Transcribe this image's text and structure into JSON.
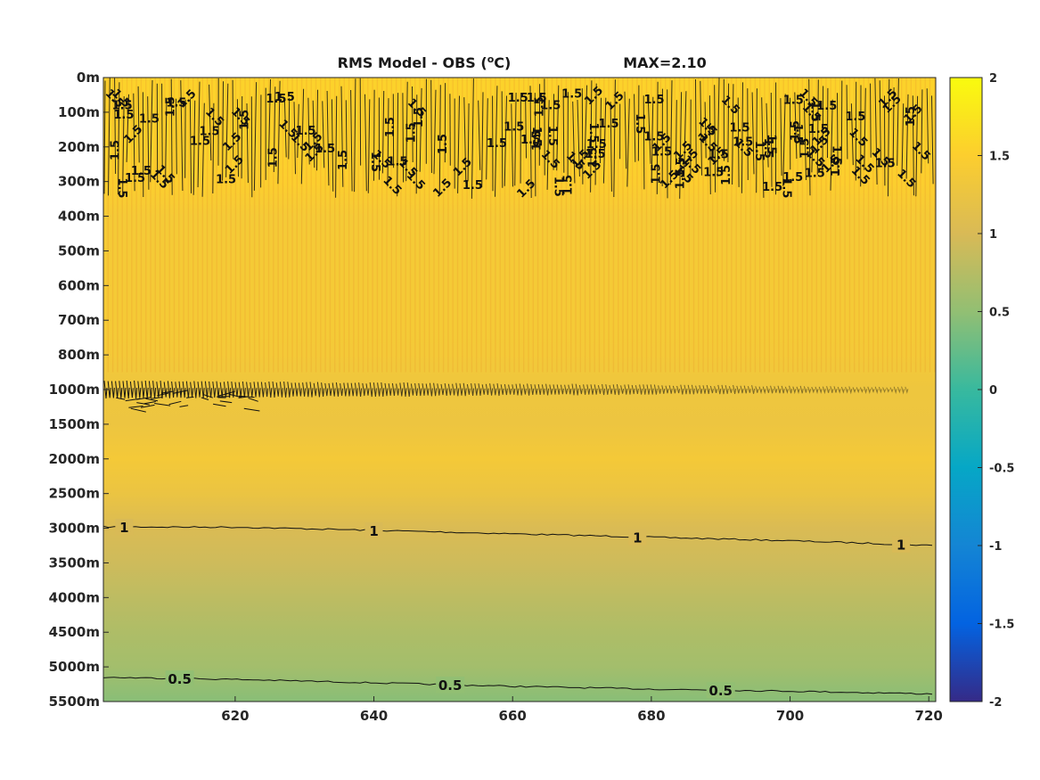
{
  "chart_data": {
    "type": "heatmap",
    "title": "RMS Model - OBS (",
    "title_unit_sup": "o",
    "title_unit_end": "C)",
    "max_label": "MAX=2.10",
    "colormap": "parula",
    "x_ticks": [
      620,
      640,
      660,
      680,
      700,
      720
    ],
    "x_range": [
      601,
      721
    ],
    "y_ticks": [
      "0m",
      "100m",
      "200m",
      "300m",
      "400m",
      "500m",
      "600m",
      "700m",
      "800m",
      "1000m",
      "1500m",
      "2000m",
      "2500m",
      "3000m",
      "3500m",
      "4000m",
      "4500m",
      "5000m",
      "5500m"
    ],
    "colorbar_ticks": [
      "2",
      "1.5",
      "1",
      "0.5",
      "0",
      "-0.5",
      "-1",
      "-1.5",
      "-2"
    ],
    "clim": [
      -2,
      2
    ],
    "depth_profile": [
      {
        "depth": "0m",
        "value": 1.55
      },
      {
        "depth": "100m",
        "value": 1.55
      },
      {
        "depth": "200m",
        "value": 1.55
      },
      {
        "depth": "300m",
        "value": 1.5
      },
      {
        "depth": "400m",
        "value": 1.4
      },
      {
        "depth": "500m",
        "value": 1.4
      },
      {
        "depth": "600m",
        "value": 1.4
      },
      {
        "depth": "700m",
        "value": 1.4
      },
      {
        "depth": "800m",
        "value": 1.38
      },
      {
        "depth": "1000m",
        "value": 1.3
      },
      {
        "depth": "1500m",
        "value": 1.28
      },
      {
        "depth": "2000m",
        "value": 1.38
      },
      {
        "depth": "2500m",
        "value": 1.25
      },
      {
        "depth": "3000m",
        "value": 1.02
      },
      {
        "depth": "3500m",
        "value": 0.92
      },
      {
        "depth": "4000m",
        "value": 0.8
      },
      {
        "depth": "4500m",
        "value": 0.7
      },
      {
        "depth": "5000m",
        "value": 0.62
      },
      {
        "depth": "5500m",
        "value": 0.45
      }
    ],
    "contours": [
      {
        "level": 1,
        "label": "1",
        "points": [
          [
            601,
            2980
          ],
          [
            620,
            2985
          ],
          [
            640,
            3030
          ],
          [
            660,
            3080
          ],
          [
            680,
            3130
          ],
          [
            700,
            3180
          ],
          [
            721,
            3250
          ]
        ],
        "label_x": [
          604,
          640,
          678,
          716
        ]
      },
      {
        "level": 0.5,
        "label": "0.5",
        "points": [
          [
            601,
            5150
          ],
          [
            620,
            5180
          ],
          [
            640,
            5230
          ],
          [
            660,
            5280
          ],
          [
            680,
            5320
          ],
          [
            700,
            5350
          ],
          [
            721,
            5390
          ]
        ],
        "label_x": [
          612,
          651,
          690
        ]
      },
      {
        "level": 1.5,
        "label": "1.5",
        "band": "upper-ocean"
      }
    ]
  }
}
